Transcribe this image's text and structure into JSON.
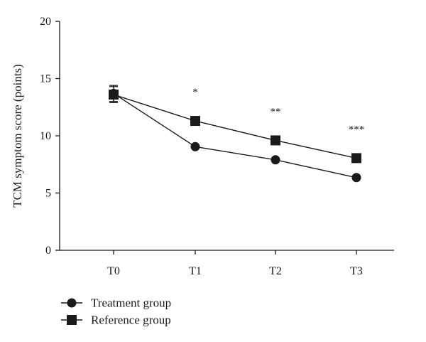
{
  "chart_data": {
    "type": "line",
    "categories": [
      "T0",
      "T1",
      "T2",
      "T3"
    ],
    "series": [
      {
        "name": "Treatment group",
        "marker": "circle",
        "values": [
          13.7,
          9.05,
          7.9,
          6.35
        ],
        "errors": [
          0.7,
          0,
          0,
          0
        ]
      },
      {
        "name": "Reference group",
        "marker": "square",
        "values": [
          13.6,
          11.3,
          9.6,
          8.05
        ],
        "errors": [
          0.7,
          0,
          0,
          0
        ]
      }
    ],
    "ylabel": "TCM symptom score (points)",
    "xlabel": "",
    "ylim": [
      0,
      20
    ],
    "yticks": [
      "0",
      "5",
      "10",
      "15",
      "20"
    ],
    "significance": [
      "",
      "*",
      "**",
      "***"
    ],
    "legend_position": "bottom-left",
    "grid": false,
    "colors": {
      "line": "#1a1a1a",
      "marker": "#1a1a1a"
    }
  }
}
